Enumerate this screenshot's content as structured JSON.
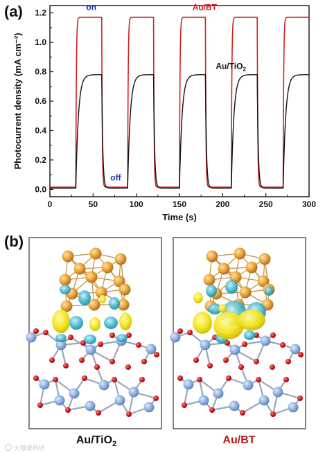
{
  "figure": {
    "panel_a_label": "(a)",
    "panel_b_label": "(b)",
    "watermark": "大咖说科研"
  },
  "chart_data": {
    "type": "line",
    "title": "",
    "xlabel": "Time (s)",
    "ylabel": "Photocurrent density (mA cm⁻²)",
    "xlim": [
      0,
      300
    ],
    "ylim": [
      -0.05,
      1.25
    ],
    "xticks": [
      0,
      50,
      100,
      150,
      200,
      250,
      300
    ],
    "yticks": [
      0.0,
      0.2,
      0.4,
      0.6,
      0.8,
      1.0,
      1.2
    ],
    "ytick_labels": [
      "0.0",
      "0.2",
      "0.4",
      "0.6",
      "0.8",
      "1.0",
      "1.2"
    ],
    "grid": false,
    "on_intervals": [
      [
        30,
        60
      ],
      [
        90,
        120
      ],
      [
        150,
        180
      ],
      [
        210,
        240
      ],
      [
        270,
        300
      ]
    ],
    "series": [
      {
        "name": "Au/BT",
        "color": "#d42020",
        "dark_level": 0.015,
        "light_level": 1.17,
        "rise_tau": 0.6,
        "decay_tau": 0.6
      },
      {
        "name": "Au/TiO₂",
        "color": "#111111",
        "dark_level": 0.008,
        "light_level": 0.78,
        "rise_tau": 3.0,
        "decay_tau": 1.2
      }
    ],
    "annotations": [
      {
        "text": "on",
        "x": 42,
        "y": 1.22,
        "color": "#1a2fb0"
      },
      {
        "text": "off",
        "x": 70,
        "y": 0.06,
        "color": "#1a2fb0"
      },
      {
        "text": "Au/BT",
        "x": 165,
        "y": 1.22,
        "color": "#d42020"
      },
      {
        "text_main": "Au/TiO",
        "text_sub": "2",
        "x": 192,
        "y": 0.82,
        "color": "#111111"
      }
    ]
  },
  "structures": [
    {
      "caption_main": "Au/TiO",
      "caption_sub": "2",
      "caption_color": "#111111"
    },
    {
      "caption_main": "Au/BT",
      "caption_sub": "",
      "caption_color": "#c0121b"
    }
  ]
}
